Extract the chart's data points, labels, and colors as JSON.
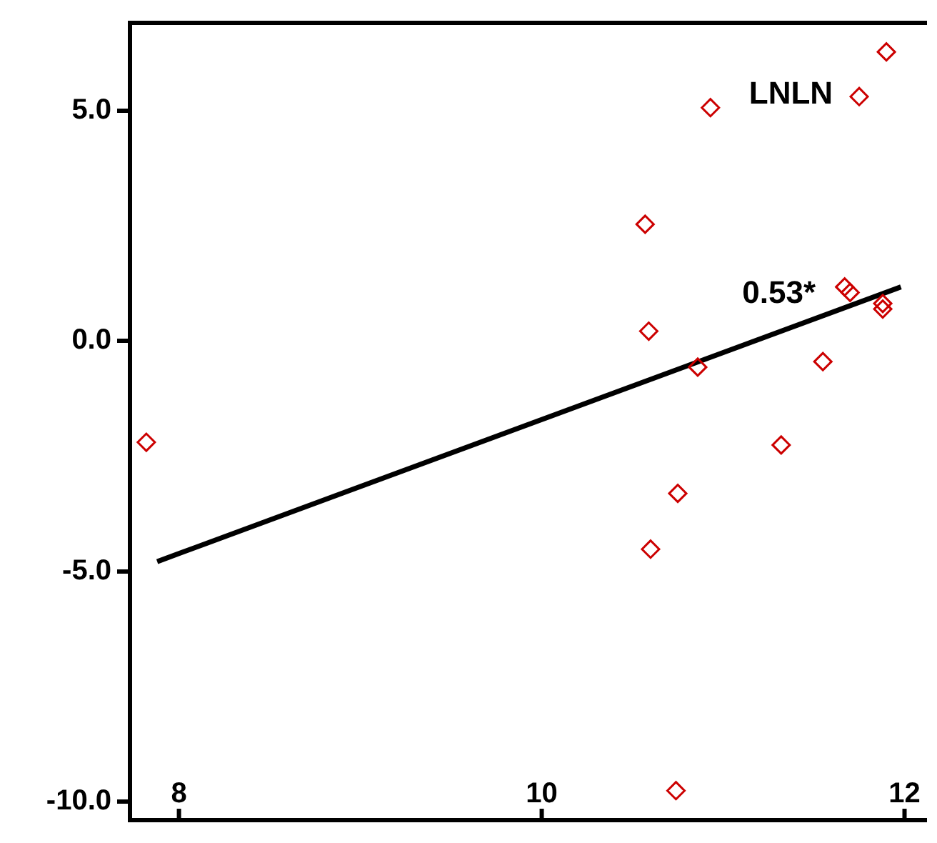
{
  "chart_data": {
    "type": "scatter",
    "xlim": [
      7.73,
      12.12
    ],
    "ylim": [
      -10.4,
      6.9
    ],
    "xticks": [
      8,
      10,
      12
    ],
    "yticks": [
      {
        "value": -10,
        "label": "-10.0"
      },
      {
        "value": -5,
        "label": "-5.0"
      },
      {
        "value": 0,
        "label": "0.0"
      },
      {
        "value": 5,
        "label": "5.0"
      }
    ],
    "grid": false,
    "legend": false,
    "series": [
      {
        "color": "#cc0000",
        "marker": "diamond",
        "x": [
          7.82,
          10.57,
          10.59,
          10.6,
          10.75,
          10.74,
          10.86,
          10.93,
          11.32,
          11.55,
          11.67,
          11.7,
          11.75,
          11.88,
          11.88,
          11.9
        ],
        "values": [
          -2.2,
          2.53,
          0.21,
          -4.52,
          -3.31,
          -9.76,
          -0.57,
          5.06,
          -2.26,
          -0.45,
          1.17,
          1.05,
          5.3,
          0.81,
          0.69,
          6.27
        ]
      },
      {
        "type": "line",
        "color": "#000000",
        "marker": "none",
        "line_style": "solid",
        "x": [
          7.88,
          11.98
        ],
        "values": [
          -4.79,
          1.17
        ]
      }
    ],
    "annotations": [
      "LNLN",
      "0.53*"
    ]
  }
}
